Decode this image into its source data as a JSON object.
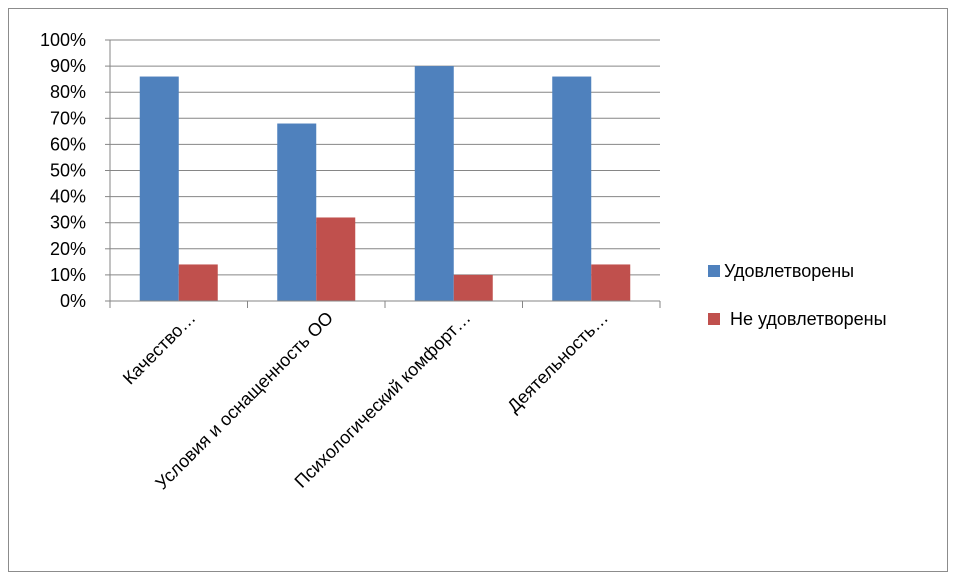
{
  "chart_data": {
    "type": "bar",
    "title": "",
    "xlabel": "",
    "ylabel": "",
    "ylim": [
      0,
      100
    ],
    "y_ticks": [
      "0%",
      "10%",
      "20%",
      "30%",
      "40%",
      "50%",
      "60%",
      "70%",
      "80%",
      "90%",
      "100%"
    ],
    "y_tick_values": [
      0,
      10,
      20,
      30,
      40,
      50,
      60,
      70,
      80,
      90,
      100
    ],
    "grid": true,
    "legend_position": "right",
    "categories": [
      "Качество…",
      "Условия и оснащенность ОО",
      "Психологический комфорт…",
      "Деятельность…"
    ],
    "series": [
      {
        "name": "Удовлетворены",
        "color": "#4f81bd",
        "values": [
          86,
          68,
          90,
          86
        ]
      },
      {
        "name": "Не удовлетворены",
        "color": "#c0504d",
        "values": [
          14,
          32,
          10,
          14
        ]
      }
    ]
  }
}
